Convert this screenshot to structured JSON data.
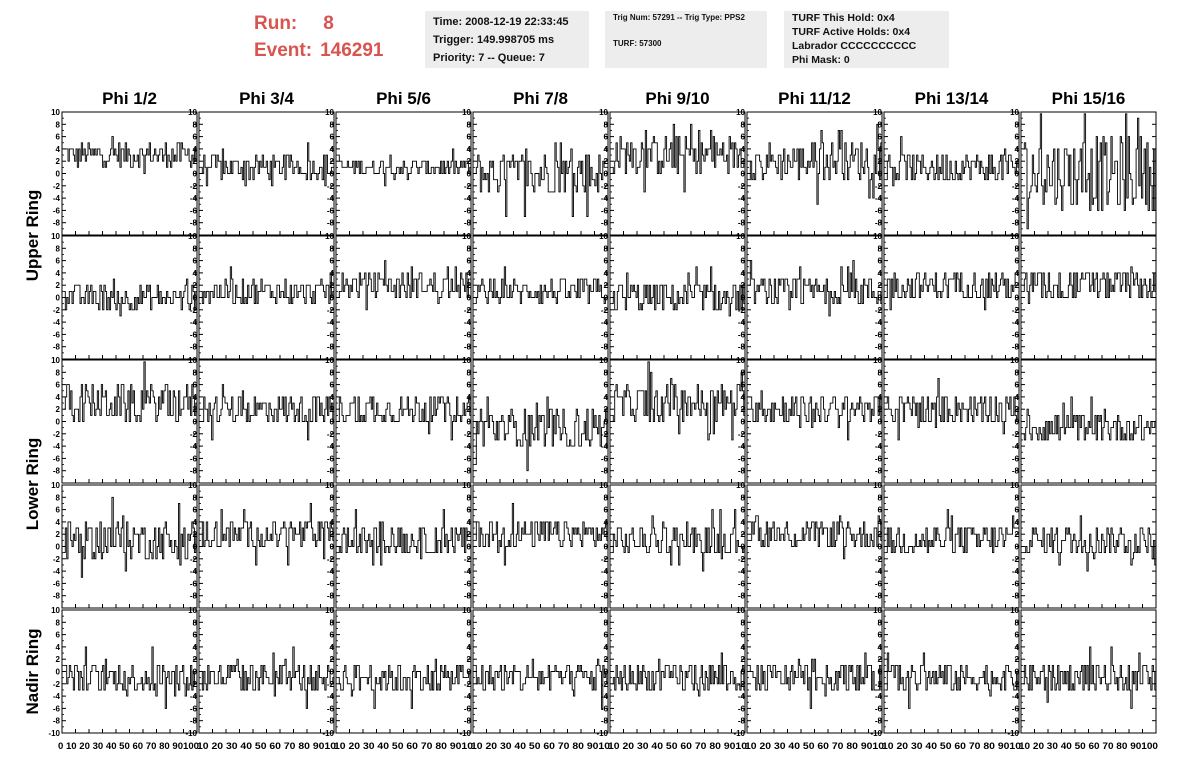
{
  "run_label": "Run:",
  "run_value": "8",
  "event_label": "Event:",
  "event_value": "146291",
  "info": {
    "time": "Time: 2008-12-19 22:33:45",
    "trigger": "Trigger: 149.998705 ms",
    "priority": "Priority: 7 -- Queue: 7",
    "trig_line": "Trig Num: 57291 -- Trig Type: PPS2",
    "turf_num": "TURF: 57300",
    "turf_this_hold": "TURF This Hold: 0x4",
    "turf_active_holds": "TURF Active Holds: 0x4",
    "labrador": "Labrador CCCCCCCCCC",
    "phi_mask": "Phi Mask: 0"
  },
  "columns": [
    "Phi 1/2",
    "Phi 3/4",
    "Phi 5/6",
    "Phi 7/8",
    "Phi 9/10",
    "Phi 11/12",
    "Phi 13/14",
    "Phi 15/16"
  ],
  "ring_groups": [
    {
      "label": "Upper Ring",
      "rows": 2
    },
    {
      "label": "Lower Ring",
      "rows": 2
    },
    {
      "label": "Nadir Ring",
      "rows": 1
    }
  ],
  "colors": {
    "run_text": "#d9534f",
    "info_bg": "#ededed",
    "trace": "#000000"
  },
  "chart_data": {
    "type": "line",
    "grid": "5 rows x 8 columns",
    "ylim": [
      -10,
      10
    ],
    "y_ticks": [
      "10",
      "8",
      "6",
      "4",
      "2",
      "0",
      "-2",
      "-4",
      "-6",
      "-8",
      "-10"
    ],
    "xlim": [
      0,
      100
    ],
    "x_ticks": [
      "0",
      "10",
      "20",
      "30",
      "40",
      "50",
      "60",
      "70",
      "80",
      "90",
      "100"
    ],
    "x_tick_text": [
      "0 10 20 30 40 50 60 70 80 90100",
      "10 20 30 40 50 60 70 80 9010",
      "10 20 30 40 50 60 70 80 9010",
      "10 20 30 40 50 60 70 80 9010",
      "10 20 30 40 50 60 70 80 9010",
      "10 20 30 40 50 60 70 80 9010",
      "10 20 30 40 50 60 70 80 9010",
      "10 20 30 40 50 60 70 80 90100"
    ],
    "trace_means": [
      [
        3,
        1,
        1,
        0,
        3,
        2,
        1,
        0
      ],
      [
        0,
        1,
        2,
        1,
        0,
        1,
        2,
        2
      ],
      [
        3,
        2,
        2,
        -1,
        3,
        2,
        2,
        -1
      ],
      [
        1,
        2,
        1,
        2,
        1,
        2,
        1,
        1
      ],
      [
        -1,
        -1,
        -1,
        -1,
        -1,
        -1,
        -1,
        -1
      ]
    ],
    "trace_spread": [
      [
        4,
        4,
        3,
        7,
        6,
        6,
        5,
        12
      ],
      [
        4,
        4,
        4,
        4,
        5,
        5,
        5,
        5
      ],
      [
        6,
        5,
        5,
        7,
        6,
        5,
        5,
        5
      ],
      [
        6,
        5,
        5,
        5,
        5,
        5,
        5,
        5
      ],
      [
        5,
        5,
        5,
        5,
        5,
        5,
        5,
        5
      ]
    ]
  }
}
